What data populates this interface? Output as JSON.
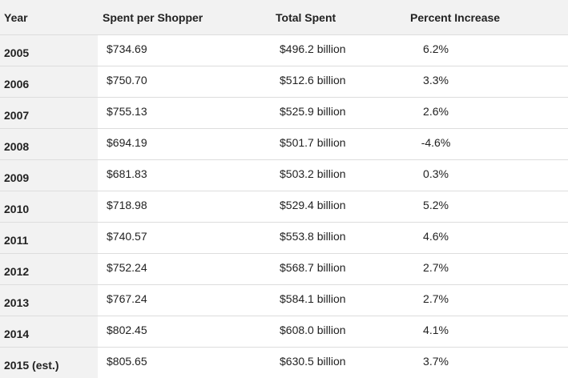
{
  "table": {
    "columns": [
      "Year",
      "Spent per Shopper",
      "Total Spent",
      "Percent Increase"
    ],
    "rows": [
      {
        "year": "2005",
        "spent_per_shopper": "$734.69",
        "total_spent": "$496.2 billion",
        "percent_increase": "6.2%"
      },
      {
        "year": "2006",
        "spent_per_shopper": "$750.70",
        "total_spent": "$512.6 billion",
        "percent_increase": "3.3%"
      },
      {
        "year": "2007",
        "spent_per_shopper": "$755.13",
        "total_spent": "$525.9 billion",
        "percent_increase": "2.6%"
      },
      {
        "year": "2008",
        "spent_per_shopper": "$694.19",
        "total_spent": "$501.7 billion",
        "percent_increase": "-4.6%"
      },
      {
        "year": "2009",
        "spent_per_shopper": "$681.83",
        "total_spent": "$503.2 billion",
        "percent_increase": "0.3%"
      },
      {
        "year": "2010",
        "spent_per_shopper": "$718.98",
        "total_spent": "$529.4 billion",
        "percent_increase": "5.2%"
      },
      {
        "year": "2011",
        "spent_per_shopper": "$740.57",
        "total_spent": "$553.8 billion",
        "percent_increase": "4.6%"
      },
      {
        "year": "2012",
        "spent_per_shopper": "$752.24",
        "total_spent": "$568.7 billion",
        "percent_increase": "2.7%"
      },
      {
        "year": "2013",
        "spent_per_shopper": "$767.24",
        "total_spent": "$584.1 billion",
        "percent_increase": "2.7%"
      },
      {
        "year": "2014",
        "spent_per_shopper": "$802.45",
        "total_spent": "$608.0 billion",
        "percent_increase": "4.1%"
      },
      {
        "year": "2015 (est.)",
        "spent_per_shopper": "$805.65",
        "total_spent": "$630.5 billion",
        "percent_increase": "3.7%"
      }
    ]
  }
}
